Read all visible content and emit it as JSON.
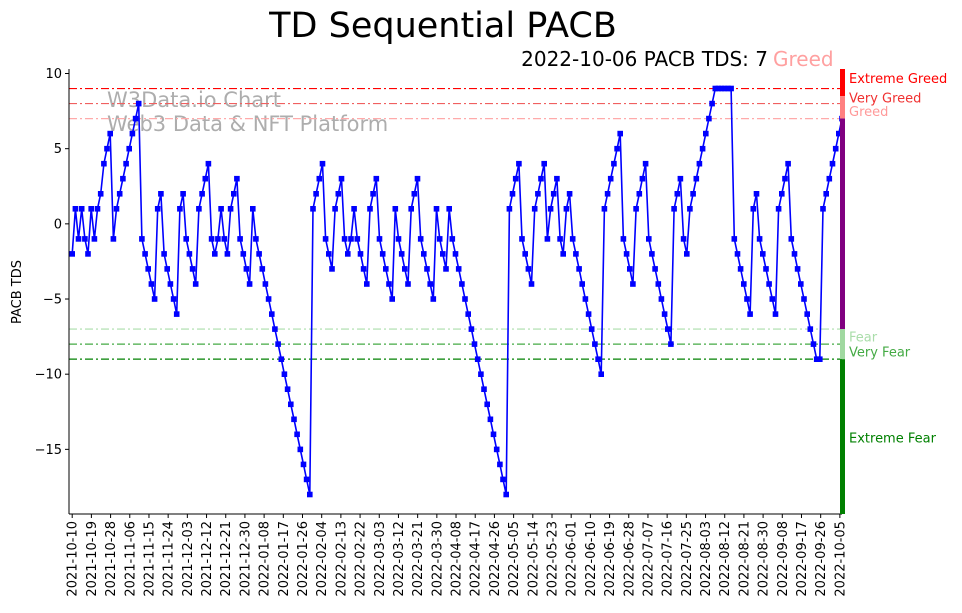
{
  "chart_data": {
    "type": "line",
    "title": "TD Sequential PACB",
    "subtitle_main": "2022-10-06 PACB TDS: 7",
    "subtitle_state": "Greed",
    "ylabel": "PACB TDS",
    "xlabel": "",
    "ylim": [
      -19.3,
      10.3
    ],
    "yticks": [
      -15,
      -10,
      -5,
      0,
      5,
      10
    ],
    "xticks": [
      "2021-10-10",
      "2021-10-19",
      "2021-10-28",
      "2021-11-06",
      "2021-11-15",
      "2021-11-24",
      "2021-12-03",
      "2021-12-12",
      "2021-12-21",
      "2021-12-30",
      "2022-01-08",
      "2022-01-17",
      "2022-01-26",
      "2022-02-04",
      "2022-02-13",
      "2022-02-22",
      "2022-03-03",
      "2022-03-12",
      "2022-03-21",
      "2022-03-30",
      "2022-04-08",
      "2022-04-17",
      "2022-04-26",
      "2022-05-05",
      "2022-05-14",
      "2022-05-23",
      "2022-06-01",
      "2022-06-10",
      "2022-06-19",
      "2022-06-28",
      "2022-07-07",
      "2022-07-16",
      "2022-07-25",
      "2022-08-03",
      "2022-08-12",
      "2022-08-21",
      "2022-08-30",
      "2022-09-08",
      "2022-09-17",
      "2022-09-26",
      "2022-10-05"
    ],
    "watermark": [
      "W3Data.io Chart",
      "Web3 Data & NFT Platform"
    ],
    "levels": [
      {
        "value": 9,
        "label": "Extreme Greed",
        "color": "#ff0000"
      },
      {
        "value": 8,
        "label": "Very Greed",
        "color": "#f06060"
      },
      {
        "value": 7,
        "label": "Greed",
        "color": "#ffaaaa"
      },
      {
        "value": -7,
        "label": "Fear",
        "color": "#aaddaa"
      },
      {
        "value": -8,
        "label": "Very Fear",
        "color": "#44aa44"
      },
      {
        "value": -9,
        "label": "Extreme Fear",
        "color": "#008000"
      }
    ],
    "side_labels": [
      {
        "text": "Extreme Greed",
        "y": 9.7,
        "color": "#ff0000"
      },
      {
        "text": "Very Greed",
        "y": 8.4,
        "color": "#f03030"
      },
      {
        "text": "Greed",
        "y": 7.5,
        "color": "#ff9999"
      },
      {
        "text": "Fear",
        "y": -7.5,
        "color": "#aaddaa"
      },
      {
        "text": "Very Fear",
        "y": -8.5,
        "color": "#44aa44"
      },
      {
        "text": "Extreme Fear",
        "y": -14.2,
        "color": "#008000"
      }
    ],
    "sidebar": [
      {
        "from": 8.5,
        "to": 10.3,
        "color": "#ff0000"
      },
      {
        "from": 7.0,
        "to": 8.5,
        "color": "#ff8080"
      },
      {
        "from": -7.0,
        "to": 7.0,
        "color": "#800080"
      },
      {
        "from": -9.0,
        "to": -7.0,
        "color": "#a0d8a0"
      },
      {
        "from": -19.3,
        "to": -9.0,
        "color": "#008000"
      }
    ],
    "series": [
      {
        "name": "PACB TDS",
        "color": "#0000ff",
        "start_date": "2021-10-10",
        "end_date": "2022-10-06",
        "values": [
          -2,
          1,
          -1,
          1,
          -1,
          -2,
          1,
          -1,
          1,
          2,
          4,
          5,
          6,
          -1,
          1,
          2,
          3,
          4,
          5,
          6,
          7,
          8,
          -1,
          -2,
          -3,
          -4,
          -5,
          1,
          2,
          -2,
          -3,
          -4,
          -5,
          -6,
          1,
          2,
          -1,
          -2,
          -3,
          -4,
          1,
          2,
          3,
          4,
          -1,
          -2,
          -1,
          1,
          -1,
          -2,
          1,
          2,
          3,
          -1,
          -2,
          -3,
          -4,
          1,
          -1,
          -2,
          -3,
          -4,
          -5,
          -6,
          -7,
          -8,
          -9,
          -10,
          -11,
          -12,
          -13,
          -14,
          -15,
          -16,
          -17,
          -18,
          1,
          2,
          3,
          4,
          -1,
          -2,
          -3,
          1,
          2,
          3,
          -1,
          -2,
          -1,
          1,
          -1,
          -2,
          -3,
          -4,
          1,
          2,
          3,
          -1,
          -2,
          -3,
          -4,
          -5,
          1,
          -1,
          -2,
          -3,
          -4,
          1,
          2,
          3,
          -1,
          -2,
          -3,
          -4,
          -5,
          1,
          -1,
          -2,
          -3,
          1,
          -1,
          -2,
          -3,
          -4,
          -5,
          -6,
          -7,
          -8,
          -9,
          -10,
          -11,
          -12,
          -13,
          -14,
          -15,
          -16,
          -17,
          -18,
          1,
          2,
          3,
          4,
          -1,
          -2,
          -3,
          -4,
          1,
          2,
          3,
          4,
          -1,
          1,
          2,
          3,
          -1,
          -2,
          1,
          2,
          -1,
          -2,
          -3,
          -4,
          -5,
          -6,
          -7,
          -8,
          -9,
          -10,
          1,
          2,
          3,
          4,
          5,
          6,
          -1,
          -2,
          -3,
          -4,
          1,
          2,
          3,
          4,
          -1,
          -2,
          -3,
          -4,
          -5,
          -6,
          -7,
          -8,
          1,
          2,
          3,
          -1,
          -2,
          1,
          2,
          3,
          4,
          5,
          6,
          7,
          8,
          9,
          9,
          9,
          9,
          9,
          9,
          -1,
          -2,
          -3,
          -4,
          -5,
          -6,
          1,
          2,
          -1,
          -2,
          -3,
          -4,
          -5,
          -6,
          1,
          2,
          3,
          4,
          -1,
          -2,
          -3,
          -4,
          -5,
          -6,
          -7,
          -8,
          -9,
          -9,
          1,
          2,
          3,
          4,
          5,
          6,
          7
        ]
      }
    ]
  }
}
